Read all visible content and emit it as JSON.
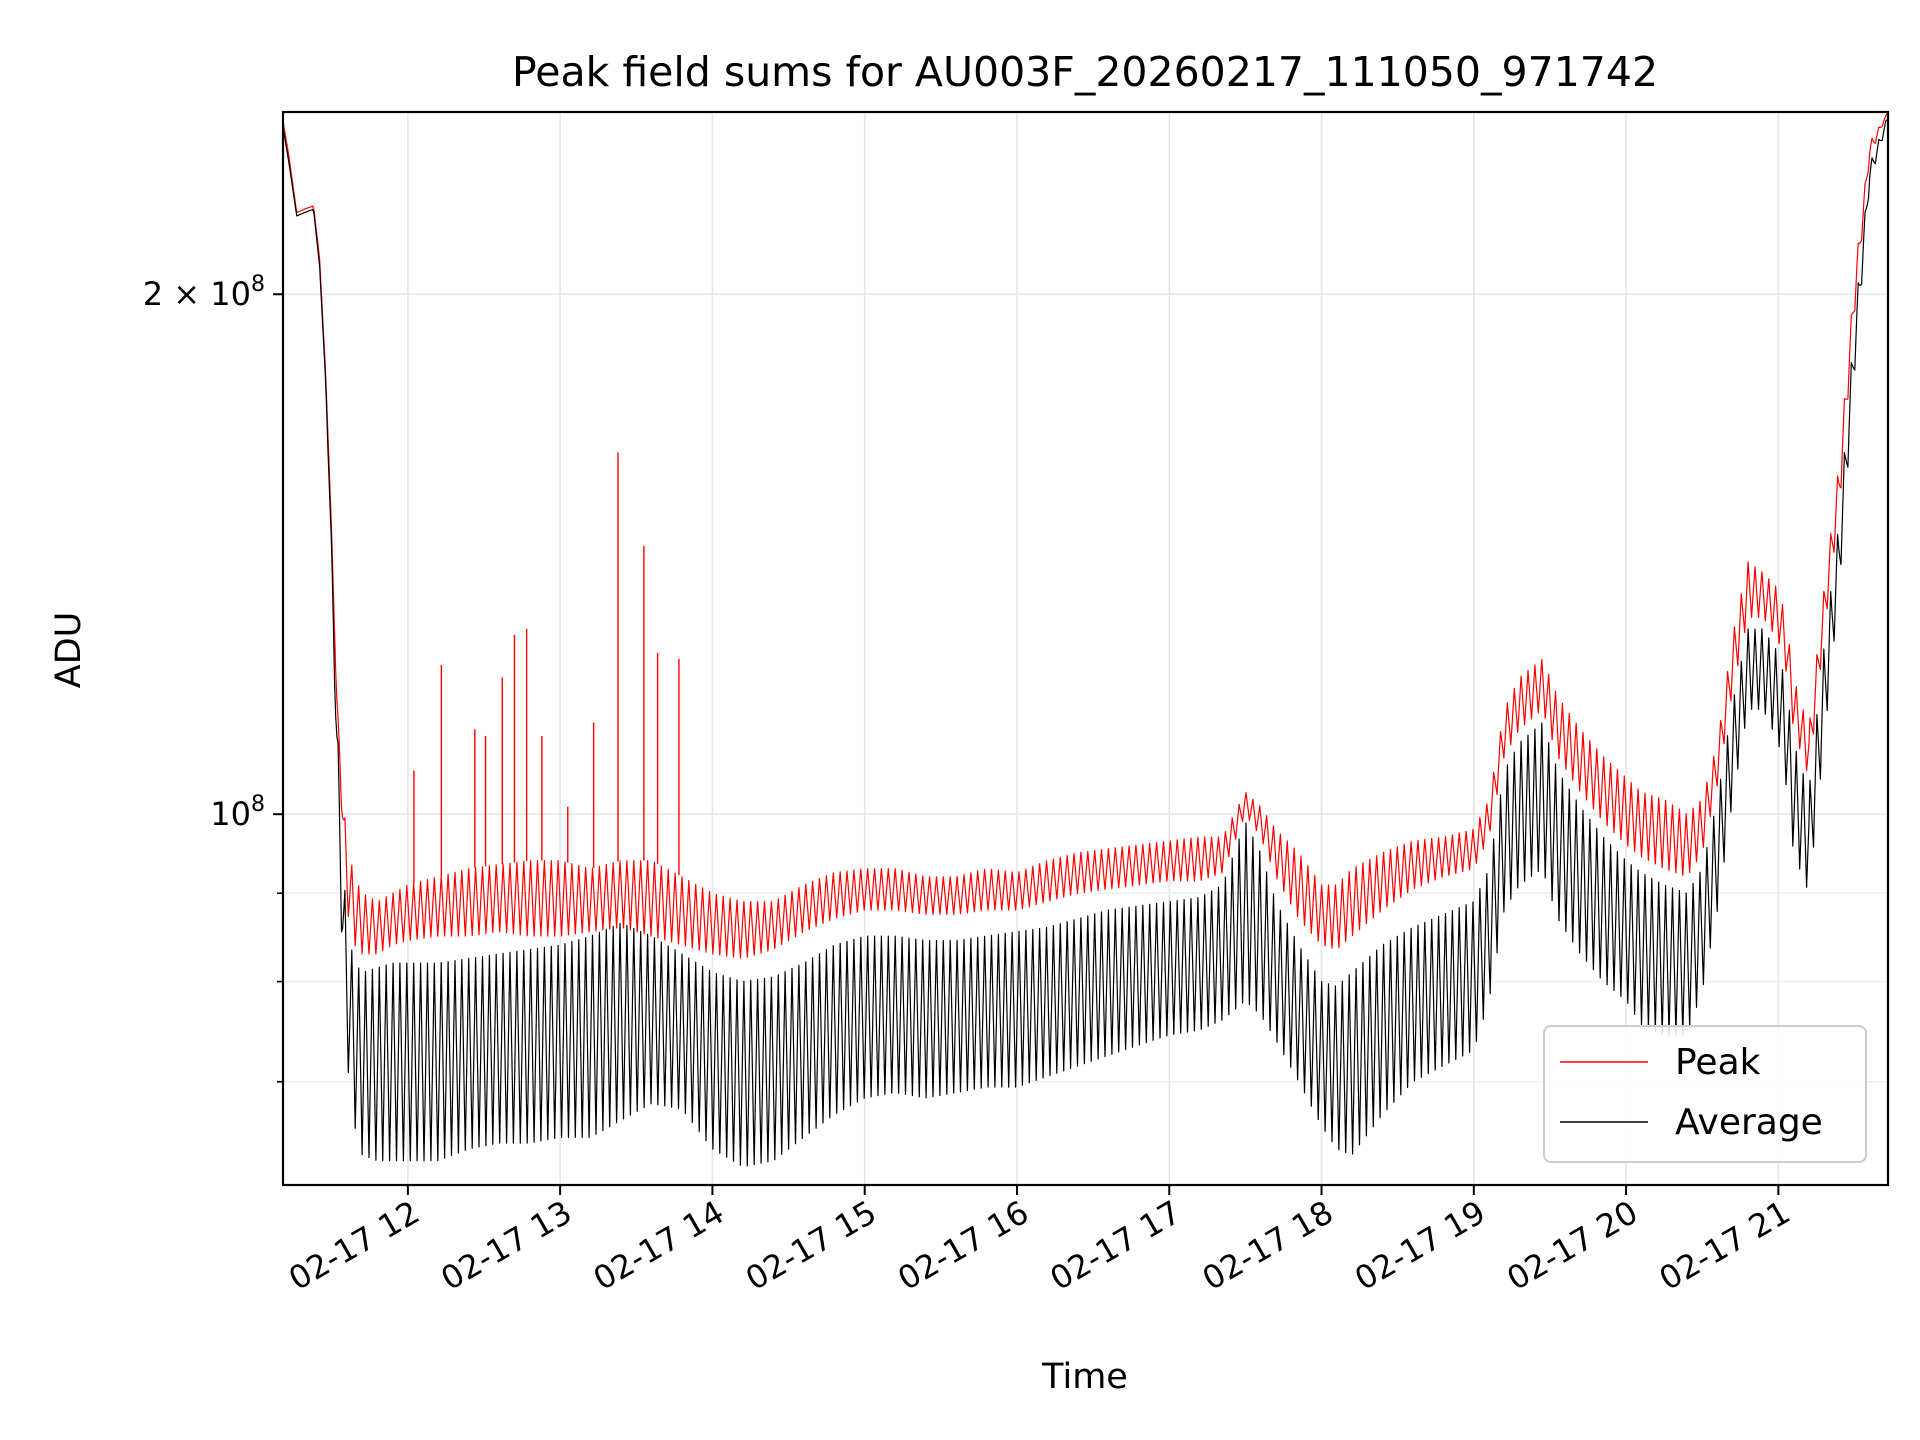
{
  "chart_data": {
    "type": "line",
    "title": "Peak field sums for AU003F_20260217_111050_971742",
    "xlabel": "Time",
    "ylabel": "ADU",
    "y_scale": "log",
    "ylim": [
      61000000,
      255000000
    ],
    "xlim_hours": [
      11.18,
      21.72
    ],
    "x_ticks": [
      {
        "hour": 12,
        "label": "02-17 12"
      },
      {
        "hour": 13,
        "label": "02-17 13"
      },
      {
        "hour": 14,
        "label": "02-17 14"
      },
      {
        "hour": 15,
        "label": "02-17 15"
      },
      {
        "hour": 16,
        "label": "02-17 16"
      },
      {
        "hour": 17,
        "label": "02-17 17"
      },
      {
        "hour": 18,
        "label": "02-17 18"
      },
      {
        "hour": 19,
        "label": "02-17 19"
      },
      {
        "hour": 20,
        "label": "02-17 20"
      },
      {
        "hour": 21,
        "label": "02-17 21"
      }
    ],
    "y_major_ticks": [
      {
        "value": 100000000,
        "base": "10",
        "exp": "8"
      },
      {
        "value": 200000000,
        "mantissa": "2",
        "base": "10",
        "exp": "8"
      }
    ],
    "y_minor_ticks": [
      60000000,
      70000000,
      80000000,
      90000000
    ],
    "grid": true,
    "legend_position": "lower-right",
    "series": [
      {
        "name": "Peak",
        "color": "#ff0000",
        "x_hours": [
          11.18,
          11.22,
          11.27,
          11.32,
          11.38,
          11.42,
          11.46,
          11.5,
          11.53,
          11.57,
          11.6,
          11.65,
          11.7,
          11.8,
          11.9,
          12.0,
          12.2,
          12.4,
          12.6,
          12.8,
          13.0,
          13.2,
          13.4,
          13.6,
          13.8,
          14.0,
          14.2,
          14.4,
          14.6,
          14.8,
          15.0,
          15.2,
          15.4,
          15.6,
          15.8,
          16.0,
          16.2,
          16.4,
          16.6,
          16.8,
          17.0,
          17.2,
          17.35,
          17.5,
          17.6,
          17.7,
          17.85,
          18.0,
          18.1,
          18.2,
          18.4,
          18.6,
          18.8,
          19.0,
          19.1,
          19.2,
          19.3,
          19.45,
          19.55,
          19.7,
          19.85,
          20.0,
          20.1,
          20.25,
          20.4,
          20.5,
          20.6,
          20.7,
          20.8,
          20.9,
          21.0,
          21.05,
          21.1,
          21.2,
          21.3,
          21.4,
          21.5,
          21.6,
          21.72
        ],
        "upper": [
          252000000,
          240000000,
          223000000,
          224000000,
          225000000,
          210000000,
          180000000,
          145000000,
          118000000,
          104000000,
          96000000,
          92000000,
          90000000,
          89000000,
          90000000,
          91000000,
          92000000,
          93000000,
          93500000,
          94000000,
          94000000,
          93000000,
          94000000,
          94000000,
          92000000,
          90000000,
          89000000,
          89000000,
          91000000,
          92500000,
          93000000,
          93000000,
          92000000,
          92000000,
          93000000,
          92500000,
          94000000,
          95000000,
          95500000,
          96000000,
          96500000,
          97000000,
          97000000,
          103000000,
          101000000,
          98000000,
          95000000,
          91000000,
          91000000,
          93000000,
          95000000,
          96500000,
          97000000,
          98000000,
          102000000,
          115000000,
          120000000,
          123000000,
          117000000,
          112000000,
          108000000,
          105000000,
          103000000,
          102000000,
          100000000,
          102000000,
          110000000,
          127000000,
          140000000,
          138000000,
          135000000,
          130000000,
          120000000,
          112000000,
          135000000,
          160000000,
          205000000,
          245000000,
          255000000
        ],
        "lower": [
          252000000,
          240000000,
          223000000,
          224000000,
          225000000,
          210000000,
          180000000,
          145000000,
          118000000,
          98000000,
          88000000,
          84000000,
          83000000,
          83000000,
          84000000,
          84500000,
          85000000,
          85000000,
          85500000,
          85000000,
          85000000,
          85500000,
          86000000,
          85000000,
          84000000,
          83000000,
          82500000,
          83500000,
          85500000,
          87000000,
          88000000,
          88000000,
          87500000,
          87500000,
          88000000,
          88000000,
          89000000,
          90000000,
          90500000,
          91000000,
          91500000,
          91500000,
          92500000,
          100000000,
          97000000,
          92000000,
          87000000,
          84000000,
          83500000,
          85000000,
          88000000,
          90500000,
          92000000,
          93000000,
          97000000,
          108000000,
          112000000,
          115000000,
          108000000,
          103000000,
          99000000,
          96000000,
          94500000,
          93000000,
          92000000,
          95000000,
          104000000,
          118000000,
          130000000,
          130000000,
          126000000,
          121000000,
          112000000,
          105000000,
          127000000,
          150000000,
          195000000,
          240000000,
          255000000
        ],
        "spikes": [
          {
            "x_hour": 12.04,
            "value": 106000000
          },
          {
            "x_hour": 12.22,
            "value": 122000000
          },
          {
            "x_hour": 12.44,
            "value": 112000000
          },
          {
            "x_hour": 12.51,
            "value": 111000000
          },
          {
            "x_hour": 12.62,
            "value": 120000000
          },
          {
            "x_hour": 12.7,
            "value": 127000000
          },
          {
            "x_hour": 12.78,
            "value": 128000000
          },
          {
            "x_hour": 12.88,
            "value": 111000000
          },
          {
            "x_hour": 13.05,
            "value": 101000000
          },
          {
            "x_hour": 13.22,
            "value": 113000000
          },
          {
            "x_hour": 13.38,
            "value": 162000000
          },
          {
            "x_hour": 13.55,
            "value": 143000000
          },
          {
            "x_hour": 13.64,
            "value": 124000000
          },
          {
            "x_hour": 13.78,
            "value": 123000000
          }
        ]
      },
      {
        "name": "Average",
        "color": "#000000",
        "x_hours": [
          11.18,
          11.22,
          11.27,
          11.32,
          11.38,
          11.42,
          11.46,
          11.5,
          11.53,
          11.57,
          11.6,
          11.65,
          11.7,
          11.8,
          11.9,
          12.0,
          12.2,
          12.4,
          12.6,
          12.8,
          13.0,
          13.2,
          13.4,
          13.6,
          13.8,
          14.0,
          14.2,
          14.4,
          14.6,
          14.8,
          15.0,
          15.2,
          15.4,
          15.6,
          15.8,
          16.0,
          16.2,
          16.4,
          16.6,
          16.8,
          17.0,
          17.2,
          17.35,
          17.5,
          17.6,
          17.7,
          17.85,
          18.0,
          18.1,
          18.2,
          18.4,
          18.6,
          18.8,
          19.0,
          19.1,
          19.2,
          19.3,
          19.45,
          19.55,
          19.7,
          19.85,
          20.0,
          20.1,
          20.25,
          20.4,
          20.5,
          20.6,
          20.7,
          20.8,
          20.9,
          21.0,
          21.05,
          21.1,
          21.2,
          21.3,
          21.4,
          21.5,
          21.6,
          21.72
        ],
        "upper": [
          250000000,
          238000000,
          222000000,
          223000000,
          224000000,
          208000000,
          178000000,
          142000000,
          116000000,
          96000000,
          86000000,
          82000000,
          81000000,
          81500000,
          82000000,
          82000000,
          82000000,
          82500000,
          83000000,
          83500000,
          84000000,
          85000000,
          86500000,
          85000000,
          83000000,
          81000000,
          80000000,
          80500000,
          82000000,
          84000000,
          85000000,
          85000000,
          84500000,
          84500000,
          85000000,
          85500000,
          86000000,
          87000000,
          88000000,
          88500000,
          89000000,
          89500000,
          91000000,
          99000000,
          95000000,
          89000000,
          84000000,
          80000000,
          79500000,
          81000000,
          84000000,
          86000000,
          87500000,
          89000000,
          93000000,
          106000000,
          110000000,
          113000000,
          106000000,
          101000000,
          97000000,
          94000000,
          92500000,
          91000000,
          90000000,
          93000000,
          102000000,
          116000000,
          128000000,
          128000000,
          124000000,
          119000000,
          110000000,
          103000000,
          125000000,
          148000000,
          193000000,
          238000000,
          254000000
        ],
        "lower": [
          250000000,
          238000000,
          222000000,
          223000000,
          224000000,
          208000000,
          178000000,
          140000000,
          108000000,
          82000000,
          72000000,
          66000000,
          63500000,
          63000000,
          63000000,
          63000000,
          63000000,
          64000000,
          64500000,
          64500000,
          65000000,
          65000000,
          66500000,
          68000000,
          67500000,
          64000000,
          62500000,
          63000000,
          65000000,
          67000000,
          68500000,
          69000000,
          68500000,
          69000000,
          69500000,
          69500000,
          70500000,
          71500000,
          72500000,
          73500000,
          74500000,
          75000000,
          76000000,
          78000000,
          76500000,
          74000000,
          70000000,
          66000000,
          64000000,
          63500000,
          67000000,
          70000000,
          71500000,
          73000000,
          78000000,
          88000000,
          91000000,
          93000000,
          87000000,
          83000000,
          80000000,
          78000000,
          75500000,
          74500000,
          74500000,
          79000000,
          88000000,
          102000000,
          115000000,
          115000000,
          110000000,
          104000000,
          95000000,
          90000000,
          110000000,
          135000000,
          180000000,
          232000000,
          252000000
        ]
      }
    ]
  }
}
